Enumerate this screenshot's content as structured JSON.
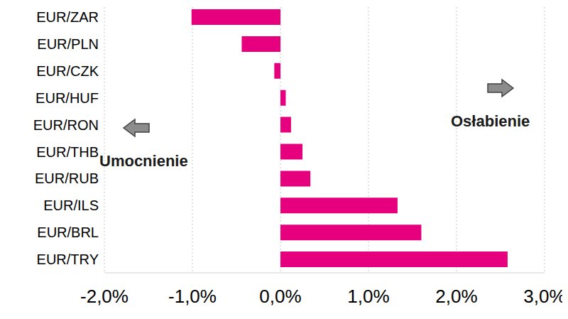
{
  "chart_data": {
    "type": "bar",
    "orientation": "horizontal",
    "categories": [
      "EUR/ZAR",
      "EUR/PLN",
      "EUR/CZK",
      "EUR/HUF",
      "EUR/RON",
      "EUR/THB",
      "EUR/RUB",
      "EUR/ILS",
      "EUR/BRL",
      "EUR/TRY"
    ],
    "values": [
      -1.01,
      -0.44,
      -0.07,
      0.06,
      0.12,
      0.25,
      0.34,
      1.33,
      1.6,
      2.58
    ],
    "color": "#E6007E",
    "xlim": [
      -2,
      3
    ],
    "xticks": [
      {
        "value": -2,
        "label": "-2,0%"
      },
      {
        "value": -1,
        "label": "-1,0%"
      },
      {
        "value": 0,
        "label": "0,0%"
      },
      {
        "value": 1,
        "label": "1,0%"
      },
      {
        "value": 2,
        "label": "2,0%"
      },
      {
        "value": 3,
        "label": "3,0%"
      }
    ],
    "grid": true,
    "annotations": [
      "Umocnienie",
      "Osłabienie"
    ]
  }
}
